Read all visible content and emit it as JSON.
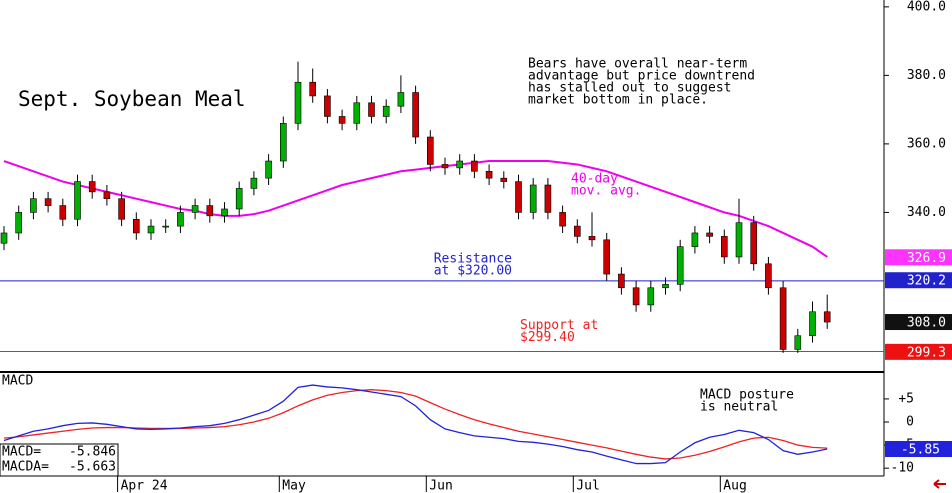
{
  "chart_data": [
    {
      "type": "candlestick",
      "title": "Sept. Soybean Meal",
      "note": [
        "Bears have overall near-term",
        "advantage but price downtrend",
        "has stalled out to suggest",
        "market bottom in place."
      ],
      "ylim": [
        294,
        402
      ],
      "yticks": [
        {
          "value": 400,
          "label": "400.0"
        },
        {
          "value": 380,
          "label": "380.0"
        },
        {
          "value": 360,
          "label": "360.0"
        },
        {
          "value": 340,
          "label": "340.0"
        }
      ],
      "up_color": "#00b000",
      "down_color": "#cc0000",
      "open": [
        331,
        334,
        340,
        344,
        342,
        338,
        349,
        346,
        344,
        338,
        334,
        336,
        336,
        340,
        342,
        339,
        341,
        347,
        350,
        355,
        366,
        378,
        374,
        368,
        366,
        372,
        368,
        371,
        375,
        362,
        354,
        353,
        355,
        352,
        350,
        349,
        340,
        348,
        340,
        336,
        333,
        332,
        322,
        318,
        313,
        318,
        319,
        330,
        334,
        333,
        327,
        337,
        325,
        318,
        300,
        304,
        311
      ],
      "high": [
        336,
        342,
        346,
        346,
        344,
        351,
        351,
        348,
        346,
        340,
        338,
        338,
        342,
        344,
        344,
        343,
        349,
        352,
        357,
        368,
        384,
        382,
        376,
        370,
        374,
        374,
        373,
        380,
        377,
        364,
        356,
        357,
        357,
        354,
        352,
        351,
        350,
        350,
        342,
        338,
        340,
        334,
        324,
        320,
        320,
        321,
        332,
        336,
        336,
        335,
        344,
        339,
        327,
        320,
        306,
        314,
        316
      ],
      "low": [
        329,
        332,
        338,
        340,
        336,
        336,
        344,
        342,
        336,
        332,
        332,
        334,
        334,
        338,
        337,
        337,
        339,
        345,
        348,
        353,
        364,
        372,
        366,
        364,
        364,
        366,
        366,
        369,
        360,
        352,
        351,
        351,
        350,
        348,
        347,
        338,
        338,
        338,
        334,
        331,
        330,
        320,
        316,
        311,
        311,
        316,
        317,
        328,
        331,
        325,
        325,
        323,
        316,
        299,
        299,
        302,
        306
      ],
      "close": [
        334,
        340,
        344,
        342,
        338,
        349,
        346,
        344,
        338,
        334,
        336,
        336,
        340,
        342,
        339,
        341,
        347,
        350,
        355,
        366,
        378,
        374,
        368,
        366,
        372,
        368,
        371,
        375,
        362,
        354,
        353,
        355,
        352,
        350,
        349,
        340,
        348,
        340,
        336,
        333,
        332,
        322,
        318,
        313,
        318,
        319,
        330,
        334,
        333,
        327,
        337,
        325,
        318,
        300,
        304,
        311,
        308
      ],
      "moving_average": {
        "label": [
          "40-day",
          "mov. avg."
        ],
        "color": "#ee00ee",
        "values": [
          355,
          353.5,
          352,
          350.5,
          349,
          348,
          347,
          346,
          345,
          344,
          343,
          342,
          341,
          340.5,
          339.5,
          339,
          339,
          339.5,
          340.5,
          342,
          343.5,
          345,
          346.5,
          348,
          349,
          350,
          351,
          352,
          352.5,
          353,
          353.5,
          354,
          354.5,
          355,
          355,
          355,
          355,
          355,
          354.5,
          354,
          353,
          352,
          350.5,
          349,
          347.5,
          346,
          344.5,
          343,
          341.5,
          340,
          339,
          337.5,
          336,
          334,
          332,
          330,
          327
        ]
      },
      "levels": [
        {
          "value": 320,
          "color": "#2222cc",
          "text": [
            "Resistance",
            "at $320.00"
          ]
        },
        {
          "value": 299.4,
          "color": "#ee2222",
          "text": [
            "Support at",
            "$299.40"
          ]
        }
      ],
      "price_labels": [
        {
          "value": 326.9,
          "label": "326.9",
          "color": "#ff33ff"
        },
        {
          "value": 320.2,
          "label": "320.2",
          "color": "#2222cc"
        },
        {
          "value": 308.0,
          "label": "308.0",
          "color": "#111111"
        },
        {
          "value": 299.3,
          "label": "299.3",
          "color": "#ee1111"
        }
      ]
    },
    {
      "type": "line",
      "title": "MACD",
      "note": [
        "MACD posture",
        "is neutral"
      ],
      "categories": [
        null,
        null,
        null,
        null,
        null,
        null,
        null,
        null,
        "Apr 24",
        null,
        null,
        null,
        null,
        null,
        null,
        null,
        null,
        null,
        null,
        "May",
        null,
        null,
        null,
        null,
        null,
        null,
        null,
        null,
        null,
        "Jun",
        null,
        null,
        null,
        null,
        null,
        null,
        null,
        null,
        null,
        "Jul",
        null,
        null,
        null,
        null,
        null,
        null,
        null,
        null,
        null,
        "Aug",
        null,
        null,
        null,
        null,
        null,
        null,
        null
      ],
      "ylim": [
        -11.7,
        10.4
      ],
      "yticks": [
        {
          "value": 5,
          "label": "+5"
        },
        0,
        -5,
        -10
      ],
      "series": [
        {
          "name": "MACD=",
          "color": "#2222dd",
          "values": [
            -4,
            -3,
            -2,
            -1.5,
            -0.8,
            -0.3,
            -0.2,
            -0.5,
            -1,
            -1.5,
            -1.6,
            -1.5,
            -1.3,
            -1,
            -0.8,
            -0.3,
            0.5,
            1.5,
            2.5,
            4.5,
            7.5,
            8,
            7.6,
            7.4,
            7,
            6.5,
            6,
            5.5,
            3.5,
            0.5,
            -1.5,
            -2.3,
            -3,
            -3.3,
            -3.6,
            -4.2,
            -4.4,
            -4.8,
            -5.3,
            -6,
            -6.5,
            -7.4,
            -8.2,
            -9,
            -9,
            -8.8,
            -6.5,
            -4.5,
            -3.3,
            -2.7,
            -1.8,
            -2.3,
            -3.8,
            -6.2,
            -7,
            -6.5,
            -5.846
          ]
        },
        {
          "name": "MACDA=",
          "color": "#ee2222",
          "values": [
            -3.5,
            -3.2,
            -2.8,
            -2.4,
            -2,
            -1.6,
            -1.3,
            -1.2,
            -1.2,
            -1.3,
            -1.4,
            -1.4,
            -1.4,
            -1.3,
            -1.2,
            -1,
            -0.6,
            0,
            0.8,
            2,
            3.5,
            4.8,
            5.8,
            6.4,
            6.8,
            7,
            6.8,
            6.4,
            5.6,
            4.2,
            2.8,
            1.6,
            0.5,
            -0.4,
            -1.2,
            -2,
            -2.6,
            -3.2,
            -3.8,
            -4.4,
            -5,
            -5.6,
            -6.3,
            -7,
            -7.6,
            -8,
            -7.8,
            -7.2,
            -6.4,
            -5.4,
            -4.3,
            -3.5,
            -3.3,
            -4,
            -5,
            -5.5,
            -5.663
          ]
        }
      ],
      "value_labels": [
        {
          "value": -5.85,
          "label": "-5.85",
          "color": "#2222dd"
        }
      ]
    }
  ]
}
